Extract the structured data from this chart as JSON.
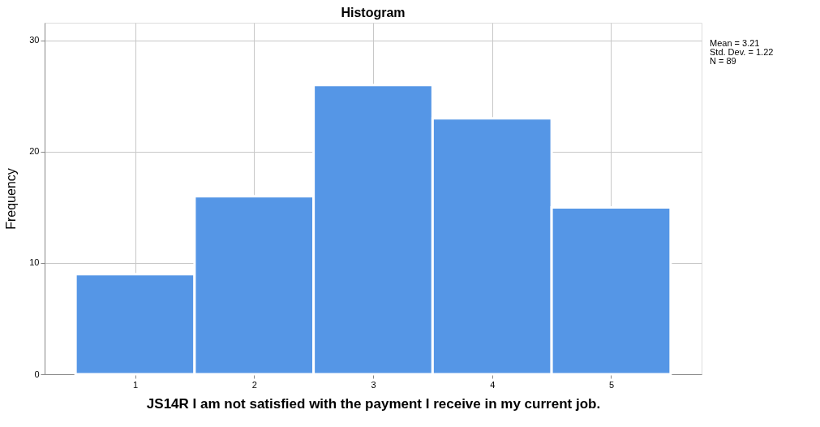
{
  "chart_data": {
    "type": "histogram",
    "title": "Histogram",
    "xlabel": "JS14R  I am not satisfied with the payment I receive in my current job.",
    "ylabel": "Frequency",
    "bins": [
      0.5,
      1.5,
      2.5,
      3.5,
      4.5,
      5.5
    ],
    "values": [
      9,
      16,
      26,
      23,
      15
    ],
    "color": "#5596e6",
    "xlim": [
      0.24,
      5.76
    ],
    "xticks": [
      1,
      2,
      3,
      4,
      5
    ],
    "ylim": [
      0,
      31.6
    ],
    "yticks": [
      0,
      10,
      20,
      30
    ],
    "grid": true,
    "annotations": [
      "Mean = 3.21",
      "Std. Dev. = 1.22",
      "N = 89"
    ]
  }
}
